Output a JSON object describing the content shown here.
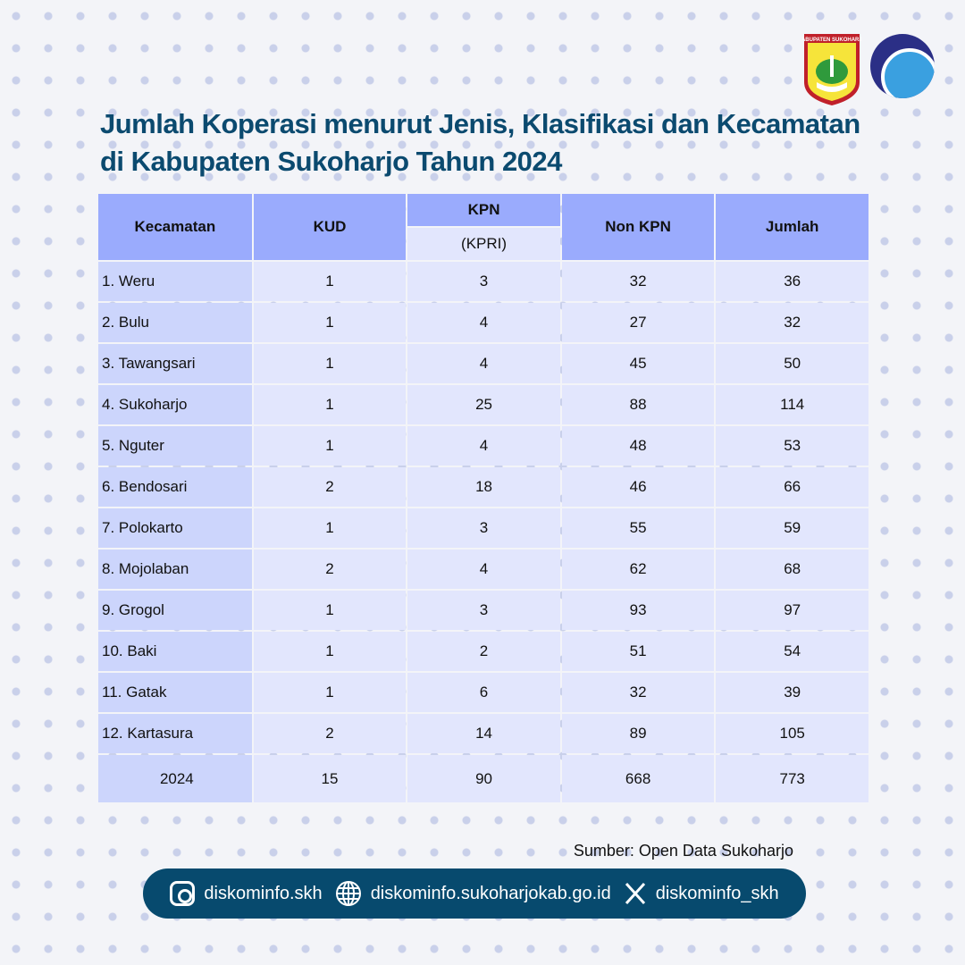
{
  "logos": {
    "regency_crest": "Kabupaten Sukoharjo",
    "ministry_logo": "kominfo-logo"
  },
  "title_line1": "Jumlah Koperasi menurut Jenis, Klasifikasi dan Kecamatan",
  "title_line2": "di Kabupaten Sukoharjo Tahun 2024",
  "table": {
    "headers": {
      "kecamatan": "Kecamatan",
      "kud": "KUD",
      "kpn": "KPN",
      "kpn_sub": "(KPRI)",
      "non_kpn": "Non KPN",
      "jumlah": "Jumlah"
    },
    "rows": [
      {
        "name": "1. Weru",
        "kud": "1",
        "kpn": "3",
        "non_kpn": "32",
        "jumlah": "36"
      },
      {
        "name": "2. Bulu",
        "kud": "1",
        "kpn": "4",
        "non_kpn": "27",
        "jumlah": "32"
      },
      {
        "name": "3. Tawangsari",
        "kud": "1",
        "kpn": "4",
        "non_kpn": "45",
        "jumlah": "50"
      },
      {
        "name": "4. Sukoharjo",
        "kud": "1",
        "kpn": "25",
        "non_kpn": "88",
        "jumlah": "114"
      },
      {
        "name": "5. Nguter",
        "kud": "1",
        "kpn": "4",
        "non_kpn": "48",
        "jumlah": "53"
      },
      {
        "name": "6. Bendosari",
        "kud": "2",
        "kpn": "18",
        "non_kpn": "46",
        "jumlah": "66"
      },
      {
        "name": "7. Polokarto",
        "kud": "1",
        "kpn": "3",
        "non_kpn": "55",
        "jumlah": "59"
      },
      {
        "name": "8. Mojolaban",
        "kud": "2",
        "kpn": "4",
        "non_kpn": "62",
        "jumlah": "68"
      },
      {
        "name": "9. Grogol",
        "kud": "1",
        "kpn": "3",
        "non_kpn": "93",
        "jumlah": "97"
      },
      {
        "name": "10. Baki",
        "kud": "1",
        "kpn": "2",
        "non_kpn": "51",
        "jumlah": "54"
      },
      {
        "name": "11. Gatak",
        "kud": "1",
        "kpn": "6",
        "non_kpn": "32",
        "jumlah": "39"
      },
      {
        "name": "12. Kartasura",
        "kud": "2",
        "kpn": "14",
        "non_kpn": "89",
        "jumlah": "105"
      }
    ],
    "total": {
      "name": "2024",
      "kud": "15",
      "kpn": "90",
      "non_kpn": "668",
      "jumlah": "773"
    }
  },
  "source": "Sumber: Open Data Sukoharjo",
  "footer": {
    "instagram": "diskominfo.skh",
    "website": "diskominfo.sukoharjokab.go.id",
    "x": "diskominfo_skh"
  }
}
